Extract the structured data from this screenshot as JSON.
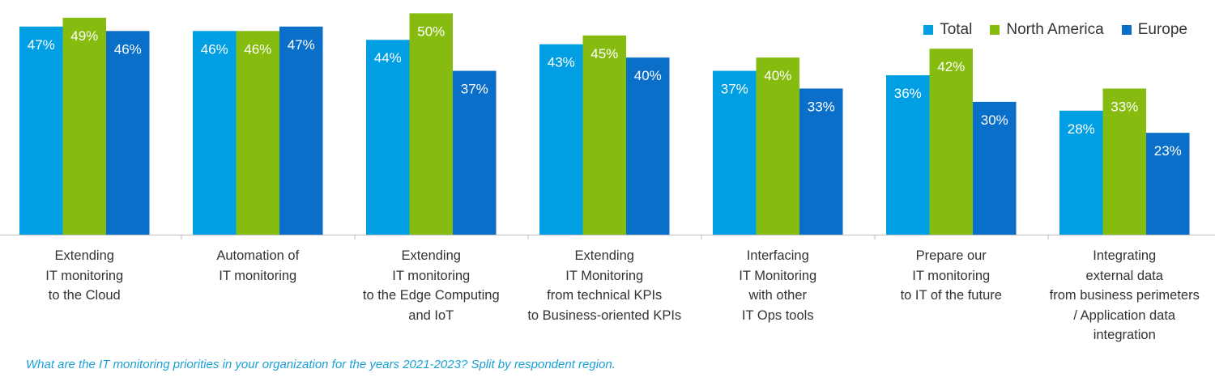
{
  "chart_data": {
    "type": "bar",
    "categories": [
      "Extending\nIT monitoring\nto the Cloud",
      "Automation of\nIT monitoring",
      "Extending\nIT monitoring\nto the Edge Computing\nand IoT",
      "Extending\nIT Monitoring\nfrom technical KPIs\nto Business-oriented KPIs",
      "Interfacing\nIT Monitoring\nwith other\nIT Ops tools",
      "Prepare our\nIT monitoring\nto IT of the future",
      "Integrating\nexternal data\nfrom business perimeters\n/ Application data\nintegration"
    ],
    "series": [
      {
        "name": "Total",
        "color": "#009fe3",
        "values": [
          47,
          46,
          44,
          43,
          37,
          36,
          28
        ]
      },
      {
        "name": "North America",
        "color": "#86bc10",
        "values": [
          49,
          46,
          50,
          45,
          40,
          42,
          33
        ]
      },
      {
        "name": "Europe",
        "color": "#0a6fc9",
        "values": [
          46,
          47,
          37,
          40,
          33,
          30,
          23
        ]
      }
    ],
    "value_suffix": "%",
    "ylim": [
      0,
      53
    ],
    "legend_position": "top-right",
    "grid": false
  },
  "caption": "What are the IT monitoring priorities in your organization for the years 2021-2023? Split by respondent region."
}
